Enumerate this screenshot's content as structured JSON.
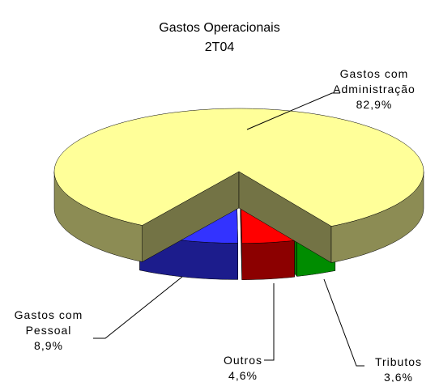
{
  "chart_data": {
    "type": "pie",
    "title": "Gastos Operacionais",
    "subtitle": "2T04",
    "categories": [
      "Tributos",
      "Outros",
      "Gastos com Pessoal",
      "Gastos com Administração"
    ],
    "values": [
      3.6,
      4.6,
      8.9,
      82.9
    ],
    "value_labels": [
      "3,6%",
      "4,6%",
      "8,9%",
      "82,9%"
    ],
    "colors": [
      "#00ff00",
      "#ff0000",
      "#3333ff",
      "#ffff99"
    ]
  }
}
